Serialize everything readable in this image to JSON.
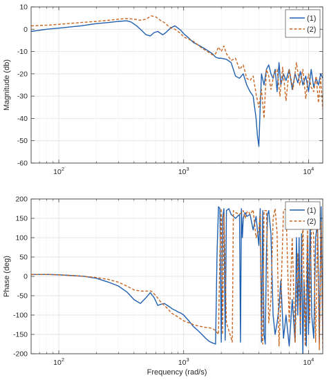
{
  "chart_data": [
    {
      "type": "line",
      "xscale": "log",
      "xlim": [
        60,
        13000
      ],
      "ylim": [
        -60,
        10
      ],
      "xlabel": "",
      "ylabel": "Magnitude (db)",
      "grid": true,
      "legend": "top-right",
      "x_ticks": [
        {
          "value": 100,
          "label": "10",
          "exp": "2"
        },
        {
          "value": 1000,
          "label": "10",
          "exp": "3"
        },
        {
          "value": 10000,
          "label": "10",
          "exp": "4"
        }
      ],
      "y_ticks": [
        {
          "value": 10,
          "label": "10"
        },
        {
          "value": 0,
          "label": "0"
        },
        {
          "value": -10,
          "label": "-10"
        },
        {
          "value": -20,
          "label": "-20"
        },
        {
          "value": -30,
          "label": "-30"
        },
        {
          "value": -40,
          "label": "-40"
        },
        {
          "value": -50,
          "label": "-50"
        },
        {
          "value": -60,
          "label": "-60"
        }
      ],
      "series": [
        {
          "name": "(1)",
          "color": "#1f5fb0",
          "dash": "solid",
          "x": [
            60,
            80,
            100,
            150,
            200,
            250,
            300,
            350,
            380,
            420,
            460,
            500,
            540,
            580,
            620,
            680,
            720,
            760,
            800,
            850,
            900,
            950,
            1000,
            1100,
            1200,
            1300,
            1400,
            1500,
            1600,
            1700,
            1800,
            1900,
            2000,
            2200,
            2400,
            2600,
            2800,
            3000,
            3200,
            3400,
            3600,
            3800,
            3900,
            4000,
            4100,
            4200,
            4400,
            4600,
            4800,
            5000,
            5200,
            5400,
            5600,
            5800,
            6000,
            6300,
            6600,
            7000,
            7400,
            7800,
            8200,
            8600,
            9000,
            9500,
            10000,
            10500,
            11000,
            11500,
            12000,
            12500,
            13000
          ],
          "y": [
            -1,
            0,
            0.5,
            1.5,
            2.5,
            3,
            3.5,
            3.8,
            3.2,
            1.5,
            -0.5,
            -2.5,
            -3,
            -1.5,
            -1,
            -2.5,
            -1.5,
            -0.2,
            0.8,
            1.5,
            0.5,
            -0.5,
            -2,
            -4,
            -6,
            -7,
            -8,
            -9,
            -10,
            -11,
            -12.5,
            -13,
            -13,
            -13.5,
            -15,
            -21,
            -22,
            -20,
            -25,
            -28,
            -30,
            -40,
            -48,
            -52.5,
            -35,
            -20,
            -25,
            -18,
            -16,
            -20,
            -22,
            -18,
            -28,
            -15,
            -25,
            -20,
            -23,
            -18,
            -27,
            -20,
            -24,
            -19,
            -25,
            -21,
            -28,
            -18,
            -26,
            -22,
            -25,
            -20,
            -22
          ]
        },
        {
          "name": "(2)",
          "color": "#c8641e",
          "dash": "dashed",
          "x": [
            60,
            80,
            100,
            150,
            200,
            250,
            300,
            350,
            400,
            450,
            500,
            550,
            600,
            650,
            700,
            750,
            800,
            850,
            900,
            950,
            1000,
            1100,
            1200,
            1300,
            1400,
            1500,
            1600,
            1700,
            1800,
            1900,
            2000,
            2100,
            2200,
            2400,
            2600,
            2800,
            3000,
            3200,
            3400,
            3600,
            3800,
            4000,
            4200,
            4400,
            4600,
            4800,
            5000,
            5300,
            5600,
            5900,
            6200,
            6600,
            7000,
            7500,
            8000,
            8500,
            9000,
            9500,
            10000,
            10500,
            11000,
            11500,
            12000,
            12500,
            13000
          ],
          "y": [
            1.5,
            1.8,
            2.2,
            3,
            3.5,
            4,
            4.5,
            4.8,
            4.5,
            4,
            4.5,
            6,
            5.5,
            4,
            3,
            1.5,
            0.5,
            0,
            -1,
            -2,
            -3.5,
            -4.5,
            -5.5,
            -7,
            -8.5,
            -9.5,
            -10.5,
            -11.5,
            -11,
            -8,
            -10,
            -7.5,
            -11,
            -14,
            -13,
            -18,
            -16,
            -22,
            -23,
            -21,
            -29,
            -35,
            -27,
            -40,
            -18,
            -21,
            -27,
            -20,
            -18,
            -30,
            -17,
            -32,
            -18,
            -27,
            -15,
            -25,
            -18,
            -31,
            -20,
            -26,
            -28,
            -21,
            -33,
            -22,
            -36
          ]
        }
      ]
    },
    {
      "type": "line",
      "xscale": "log",
      "xlim": [
        60,
        13000
      ],
      "ylim": [
        -200,
        200
      ],
      "xlabel": "Frequency (rad/s)",
      "ylabel": "Phase (deg)",
      "grid": true,
      "legend": "top-right",
      "x_ticks": [
        {
          "value": 100,
          "label": "10",
          "exp": "2"
        },
        {
          "value": 1000,
          "label": "10",
          "exp": "3"
        },
        {
          "value": 10000,
          "label": "10",
          "exp": "4"
        }
      ],
      "y_ticks": [
        {
          "value": 200,
          "label": "200"
        },
        {
          "value": 150,
          "label": "150"
        },
        {
          "value": 100,
          "label": "100"
        },
        {
          "value": 50,
          "label": "50"
        },
        {
          "value": 0,
          "label": "0"
        },
        {
          "value": -50,
          "label": "-50"
        },
        {
          "value": -100,
          "label": "-100"
        },
        {
          "value": -150,
          "label": "-150"
        },
        {
          "value": -200,
          "label": "-200"
        }
      ],
      "series": [
        {
          "name": "(1)",
          "color": "#1f5fb0",
          "dash": "solid",
          "x": [
            60,
            80,
            100,
            130,
            160,
            200,
            250,
            300,
            350,
            400,
            450,
            500,
            540,
            580,
            620,
            660,
            700,
            740,
            780,
            820,
            860,
            900,
            950,
            1000,
            1100,
            1200,
            1300,
            1400,
            1500,
            1600,
            1700,
            1800,
            1850,
            1900,
            1950,
            2000,
            2050,
            2100,
            2150,
            2200,
            2300,
            2400,
            2600,
            2800,
            2850,
            2900,
            2950,
            3000,
            3100,
            3200,
            3400,
            3600,
            3800,
            4000,
            4100,
            4200,
            4300,
            4400,
            4500,
            4600,
            4700,
            4800,
            5000,
            5200,
            5400,
            5600,
            5800,
            6000,
            6300,
            6600,
            7000,
            7400,
            7800,
            8000,
            8200,
            8400,
            8600,
            8800,
            9000,
            9200,
            9400,
            9600,
            9800,
            10000,
            10300,
            10600,
            11000,
            11400,
            11800,
            12200,
            12600,
            13000
          ],
          "y": [
            5,
            5,
            4,
            2,
            0,
            -5,
            -15,
            -25,
            -40,
            -60,
            -70,
            -55,
            -42,
            -55,
            -75,
            -72,
            -70,
            -75,
            -80,
            -85,
            -88,
            -92,
            -95,
            -100,
            -115,
            -130,
            -140,
            -150,
            -160,
            -168,
            -172,
            -175,
            60,
            180,
            175,
            -170,
            150,
            175,
            -165,
            170,
            175,
            160,
            150,
            160,
            -170,
            175,
            100,
            150,
            165,
            155,
            160,
            120,
            155,
            80,
            175,
            -170,
            170,
            -150,
            -175,
            60,
            160,
            170,
            110,
            -100,
            -150,
            -120,
            -80,
            -10,
            -160,
            -100,
            -180,
            -60,
            -170,
            100,
            -100,
            100,
            -150,
            110,
            -200,
            -10,
            -100,
            -180,
            100,
            -150,
            150,
            -100,
            -160,
            100,
            140,
            -170,
            180,
            -160
          ]
        },
        {
          "name": "(2)",
          "color": "#c8641e",
          "dash": "dashed",
          "x": [
            60,
            80,
            100,
            130,
            160,
            200,
            250,
            300,
            350,
            400,
            450,
            500,
            550,
            600,
            650,
            700,
            750,
            800,
            850,
            900,
            950,
            1000,
            1100,
            1200,
            1300,
            1400,
            1500,
            1600,
            1700,
            1800,
            1850,
            1900,
            1950,
            2000,
            2050,
            2100,
            2200,
            2300,
            2400,
            2450,
            2500,
            2600,
            2800,
            3000,
            3100,
            3200,
            3300,
            3400,
            3600,
            3800,
            4000,
            4100,
            4200,
            4300,
            4400,
            4600,
            4800,
            5000,
            5200,
            5400,
            5600,
            5800,
            6000,
            6300,
            6600,
            7000,
            7400,
            7800,
            8200,
            8600,
            9000,
            9400,
            9800,
            10200,
            10600,
            11000,
            11400,
            11800,
            12200,
            12600,
            13000
          ],
          "y": [
            5,
            5,
            4,
            2,
            0,
            -3,
            -8,
            -15,
            -25,
            -35,
            -38,
            -38,
            -38,
            -50,
            -65,
            -75,
            -85,
            -95,
            -100,
            -105,
            -110,
            -115,
            -120,
            -125,
            -128,
            -130,
            -132,
            -133,
            -135,
            -140,
            -145,
            -150,
            60,
            175,
            -150,
            160,
            -120,
            -140,
            -160,
            -170,
            170,
            165,
            160,
            170,
            150,
            165,
            168,
            160,
            172,
            100,
            120,
            160,
            -150,
            -175,
            170,
            170,
            -120,
            -60,
            150,
            175,
            110,
            -180,
            -60,
            170,
            175,
            -120,
            100,
            -170,
            60,
            -130,
            150,
            -180,
            120,
            -120,
            175,
            100,
            -170,
            130,
            -190,
            140,
            -190
          ]
        }
      ]
    }
  ]
}
